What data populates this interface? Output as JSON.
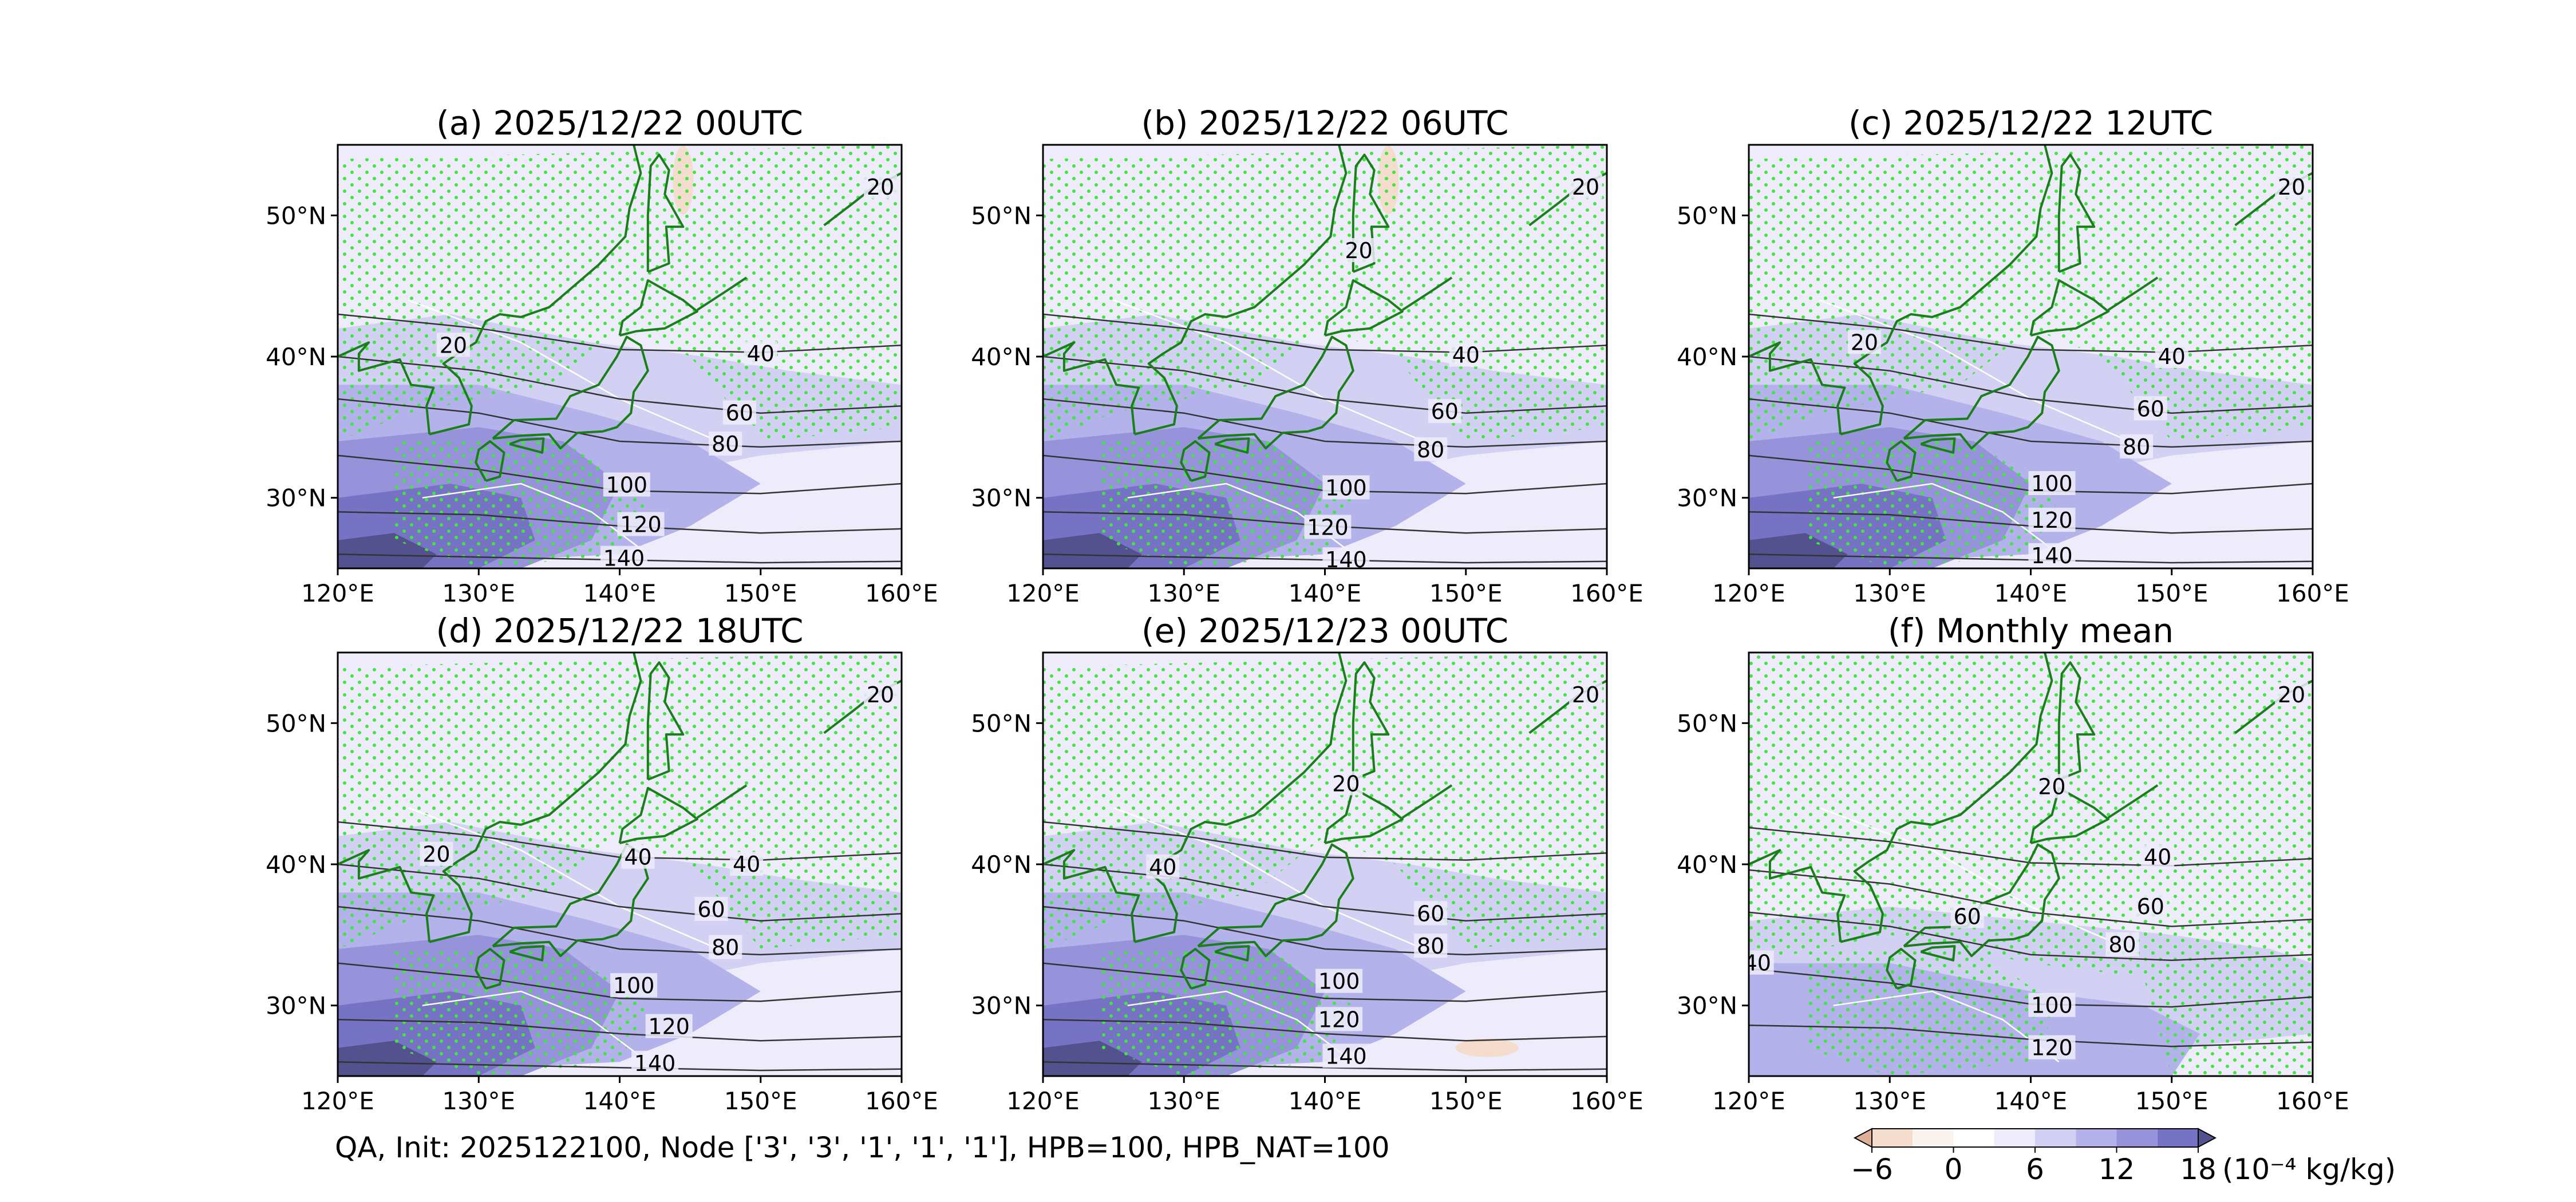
{
  "caption": "QA, Init: 2025122100, Node ['3', '3', '1', '1', '1'], HPB=100, HPB_NAT=100",
  "colorbar": {
    "ticks": [
      -6,
      0,
      6,
      12,
      18
    ],
    "tick_labels": [
      "−6",
      "0",
      "6",
      "12",
      "18"
    ],
    "unit_label": "(10⁻⁴ kg/kg)",
    "levels": [
      -9,
      -6,
      -3,
      0,
      3,
      6,
      9,
      12,
      15,
      18,
      21
    ],
    "colors": [
      "#dfb095",
      "#f4ddcd",
      "#fbf3ee",
      "#ffffff",
      "#eeecfb",
      "#d3d1f3",
      "#b4b2ea",
      "#9793db",
      "#7773c4",
      "#54528e"
    ]
  },
  "colors": {
    "coast": "#1a7f1a",
    "stipple": "#3ee63e",
    "contour": "#333333",
    "land_white_contour": "#ffffff"
  },
  "chart_data": [
    {
      "type": "map-contour",
      "title": "(a) 2025/12/22 00UTC",
      "xlim": [
        120,
        160
      ],
      "ylim": [
        25,
        55
      ],
      "x_ticks": [
        "120°E",
        "130°E",
        "140°E",
        "150°E",
        "160°E"
      ],
      "y_ticks": [
        "30°N",
        "40°N",
        "50°N"
      ],
      "contour_labels": [
        {
          "text": "20",
          "lon": 158.5,
          "lat": 52.0
        },
        {
          "text": "20",
          "lon": 128.2,
          "lat": 40.8
        },
        {
          "text": "40",
          "lon": 150.0,
          "lat": 40.2
        },
        {
          "text": "60",
          "lon": 148.5,
          "lat": 36.0
        },
        {
          "text": "80",
          "lon": 147.5,
          "lat": 33.8
        },
        {
          "text": "100",
          "lon": 140.5,
          "lat": 30.9
        },
        {
          "text": "120",
          "lon": 141.5,
          "lat": 28.1
        },
        {
          "text": "140",
          "lon": 140.3,
          "lat": 25.7
        }
      ]
    },
    {
      "type": "map-contour",
      "title": "(b) 2025/12/22 06UTC",
      "xlim": [
        120,
        160
      ],
      "ylim": [
        25,
        55
      ],
      "x_ticks": [
        "120°E",
        "130°E",
        "140°E",
        "150°E",
        "160°E"
      ],
      "y_ticks": [
        "30°N",
        "40°N",
        "50°N"
      ],
      "contour_labels": [
        {
          "text": "20",
          "lon": 158.5,
          "lat": 52.0
        },
        {
          "text": "20",
          "lon": 142.4,
          "lat": 47.5
        },
        {
          "text": "40",
          "lon": 150.0,
          "lat": 40.1
        },
        {
          "text": "60",
          "lon": 148.5,
          "lat": 36.1
        },
        {
          "text": "80",
          "lon": 147.5,
          "lat": 33.4
        },
        {
          "text": "100",
          "lon": 141.5,
          "lat": 30.7
        },
        {
          "text": "120",
          "lon": 140.2,
          "lat": 27.9
        },
        {
          "text": "140",
          "lon": 141.5,
          "lat": 25.6
        }
      ]
    },
    {
      "type": "map-contour",
      "title": "(c) 2025/12/22 12UTC",
      "xlim": [
        120,
        160
      ],
      "ylim": [
        25,
        55
      ],
      "x_ticks": [
        "120°E",
        "130°E",
        "140°E",
        "150°E",
        "160°E"
      ],
      "y_ticks": [
        "30°N",
        "40°N",
        "50°N"
      ],
      "contour_labels": [
        {
          "text": "20",
          "lon": 158.5,
          "lat": 52.0
        },
        {
          "text": "20",
          "lon": 128.2,
          "lat": 41.0
        },
        {
          "text": "40",
          "lon": 150.0,
          "lat": 40.0
        },
        {
          "text": "60",
          "lon": 148.5,
          "lat": 36.3
        },
        {
          "text": "80",
          "lon": 147.5,
          "lat": 33.6
        },
        {
          "text": "100",
          "lon": 141.5,
          "lat": 31.0
        },
        {
          "text": "120",
          "lon": 141.5,
          "lat": 28.4
        },
        {
          "text": "140",
          "lon": 141.5,
          "lat": 25.9
        }
      ]
    },
    {
      "type": "map-contour",
      "title": "(d) 2025/12/22 18UTC",
      "xlim": [
        120,
        160
      ],
      "ylim": [
        25,
        55
      ],
      "x_ticks": [
        "120°E",
        "130°E",
        "140°E",
        "150°E",
        "160°E"
      ],
      "y_ticks": [
        "30°N",
        "40°N",
        "50°N"
      ],
      "contour_labels": [
        {
          "text": "20",
          "lon": 158.5,
          "lat": 52.0
        },
        {
          "text": "20",
          "lon": 127.0,
          "lat": 40.7
        },
        {
          "text": "40",
          "lon": 141.3,
          "lat": 40.5
        },
        {
          "text": "40",
          "lon": 149.0,
          "lat": 40.0
        },
        {
          "text": "60",
          "lon": 146.5,
          "lat": 36.8
        },
        {
          "text": "80",
          "lon": 147.5,
          "lat": 34.1
        },
        {
          "text": "100",
          "lon": 141.0,
          "lat": 31.4
        },
        {
          "text": "120",
          "lon": 143.5,
          "lat": 28.5
        },
        {
          "text": "140",
          "lon": 142.5,
          "lat": 25.9
        }
      ]
    },
    {
      "type": "map-contour",
      "title": "(e) 2025/12/23 00UTC",
      "xlim": [
        120,
        160
      ],
      "ylim": [
        25,
        55
      ],
      "x_ticks": [
        "120°E",
        "130°E",
        "140°E",
        "150°E",
        "160°E"
      ],
      "y_ticks": [
        "30°N",
        "40°N",
        "50°N"
      ],
      "contour_labels": [
        {
          "text": "20",
          "lon": 158.5,
          "lat": 52.0
        },
        {
          "text": "20",
          "lon": 141.5,
          "lat": 45.7
        },
        {
          "text": "40",
          "lon": 128.5,
          "lat": 39.8
        },
        {
          "text": "60",
          "lon": 147.5,
          "lat": 36.5
        },
        {
          "text": "80",
          "lon": 147.5,
          "lat": 34.2
        },
        {
          "text": "100",
          "lon": 141.0,
          "lat": 31.7
        },
        {
          "text": "120",
          "lon": 141.0,
          "lat": 29.0
        },
        {
          "text": "140",
          "lon": 141.5,
          "lat": 26.4
        }
      ]
    },
    {
      "type": "map-contour",
      "title": "(f) Monthly mean",
      "xlim": [
        120,
        160
      ],
      "ylim": [
        25,
        55
      ],
      "x_ticks": [
        "120°E",
        "130°E",
        "140°E",
        "150°E",
        "160°E"
      ],
      "y_ticks": [
        "30°N",
        "40°N",
        "50°N"
      ],
      "contour_labels": [
        {
          "text": "20",
          "lon": 158.5,
          "lat": 52.0
        },
        {
          "text": "20",
          "lon": 141.5,
          "lat": 45.5
        },
        {
          "text": "40",
          "lon": 120.6,
          "lat": 33.0
        },
        {
          "text": "40",
          "lon": 149.0,
          "lat": 40.5
        },
        {
          "text": "60",
          "lon": 135.5,
          "lat": 36.3
        },
        {
          "text": "60",
          "lon": 148.5,
          "lat": 37.0
        },
        {
          "text": "80",
          "lon": 146.5,
          "lat": 34.3
        },
        {
          "text": "100",
          "lon": 141.5,
          "lat": 30.0
        },
        {
          "text": "120",
          "lon": 141.5,
          "lat": 27.0
        }
      ]
    }
  ]
}
